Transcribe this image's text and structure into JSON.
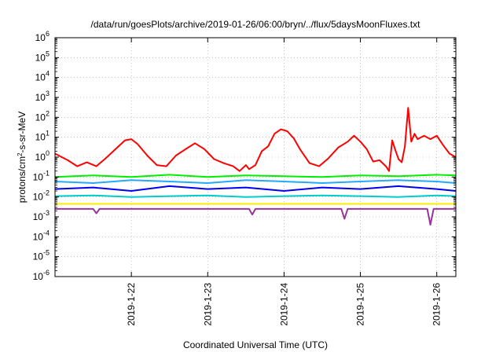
{
  "chart_data": {
    "type": "line",
    "title": "/data/run/goesPlots/archive/2019-01-26/06:00/bryn/../flux/5daysMoonFluxes.txt",
    "xlabel": "Coordinated Universal Time (UTC)",
    "ylabel": "protons/cm2-s-sr-MeV",
    "ylabel_parts": {
      "pre": "protons/cm",
      "sup": "2",
      "post": "-s-sr-MeV"
    },
    "y_scale": "log",
    "ylim": [
      1e-06,
      1000000.0
    ],
    "y_ticks": [
      {
        "base": "10",
        "exp": "-6"
      },
      {
        "base": "10",
        "exp": "-5"
      },
      {
        "base": "10",
        "exp": "-4"
      },
      {
        "base": "10",
        "exp": "-3"
      },
      {
        "base": "10",
        "exp": "-2"
      },
      {
        "base": "10",
        "exp": "-1"
      },
      {
        "base": "10",
        "exp": "0"
      },
      {
        "base": "10",
        "exp": "1"
      },
      {
        "base": "10",
        "exp": "2"
      },
      {
        "base": "10",
        "exp": "3"
      },
      {
        "base": "10",
        "exp": "4"
      },
      {
        "base": "10",
        "exp": "5"
      },
      {
        "base": "10",
        "exp": "6"
      }
    ],
    "xlim": [
      "2019-01-21T00:00",
      "2019-01-26T06:00"
    ],
    "x_ticks": [
      "2019-1-22",
      "2019-1-23",
      "2019-1-24",
      "2019-1-25",
      "2019-1-26"
    ],
    "grid": true,
    "series": [
      {
        "color": "#ff0000",
        "width": 2,
        "x": [
          "2019-01-21T00:00",
          "2019-01-21T04:00",
          "2019-01-21T07:00",
          "2019-01-21T10:00",
          "2019-01-21T13:00",
          "2019-01-21T16:00",
          "2019-01-21T19:00",
          "2019-01-21T22:00",
          "2019-01-22T00:00",
          "2019-01-22T02:00",
          "2019-01-22T05:00",
          "2019-01-22T08:00",
          "2019-01-22T11:00",
          "2019-01-22T14:00",
          "2019-01-22T17:00",
          "2019-01-22T20:00",
          "2019-01-22T23:00",
          "2019-01-23T02:00",
          "2019-01-23T05:00",
          "2019-01-23T08:00",
          "2019-01-23T10:00",
          "2019-01-23T12:00",
          "2019-01-23T13:00",
          "2019-01-23T15:00",
          "2019-01-23T17:00",
          "2019-01-23T19:00",
          "2019-01-23T21:00",
          "2019-01-23T23:00",
          "2019-01-24T01:00",
          "2019-01-24T03:00",
          "2019-01-24T05:00",
          "2019-01-24T08:00",
          "2019-01-24T11:00",
          "2019-01-24T14:00",
          "2019-01-24T17:00",
          "2019-01-24T20:00",
          "2019-01-24T22:00",
          "2019-01-25T00:00",
          "2019-01-25T02:00",
          "2019-01-25T04:00",
          "2019-01-25T06:00",
          "2019-01-25T08:00",
          "2019-01-25T09:00",
          "2019-01-25T10:00",
          "2019-01-25T11:00",
          "2019-01-25T12:00",
          "2019-01-25T13:00",
          "2019-01-25T14:00",
          "2019-01-25T15:00",
          "2019-01-25T16:00",
          "2019-01-25T17:00",
          "2019-01-25T18:00",
          "2019-01-25T20:00",
          "2019-01-25T22:00",
          "2019-01-26T00:00",
          "2019-01-26T02:00",
          "2019-01-26T04:00",
          "2019-01-26T06:00"
        ],
        "y": [
          1.5,
          0.7,
          0.35,
          0.55,
          0.35,
          0.9,
          2.5,
          7,
          8,
          4.5,
          1.2,
          0.4,
          0.35,
          1.2,
          2.5,
          5,
          2.5,
          0.8,
          0.5,
          0.35,
          0.2,
          0.4,
          0.25,
          0.4,
          2,
          3.5,
          15,
          25,
          20,
          9,
          2.5,
          0.5,
          0.35,
          0.9,
          3,
          6,
          12,
          6,
          2.5,
          0.6,
          0.7,
          0.35,
          0.2,
          7,
          2.2,
          0.8,
          0.55,
          3.5,
          300,
          6,
          15,
          8,
          12,
          8,
          12,
          4,
          1.5,
          1
        ]
      },
      {
        "color": "#00ee00",
        "width": 2,
        "x": [
          "2019-01-21T00:00",
          "2019-01-21T12:00",
          "2019-01-22T00:00",
          "2019-01-22T12:00",
          "2019-01-23T00:00",
          "2019-01-23T12:00",
          "2019-01-24T00:00",
          "2019-01-24T12:00",
          "2019-01-25T00:00",
          "2019-01-25T12:00",
          "2019-01-26T00:00",
          "2019-01-26T06:00"
        ],
        "y": [
          0.1,
          0.12,
          0.1,
          0.13,
          0.1,
          0.12,
          0.11,
          0.1,
          0.12,
          0.11,
          0.13,
          0.12
        ]
      },
      {
        "color": "#22aaff",
        "width": 2,
        "x": [
          "2019-01-21T00:00",
          "2019-01-21T12:00",
          "2019-01-22T00:00",
          "2019-01-22T12:00",
          "2019-01-23T00:00",
          "2019-01-23T12:00",
          "2019-01-24T00:00",
          "2019-01-24T12:00",
          "2019-01-25T00:00",
          "2019-01-25T12:00",
          "2019-01-26T00:00",
          "2019-01-26T06:00"
        ],
        "y": [
          0.06,
          0.05,
          0.07,
          0.06,
          0.05,
          0.07,
          0.06,
          0.05,
          0.06,
          0.07,
          0.06,
          0.05
        ]
      },
      {
        "color": "#0000ee",
        "width": 2,
        "x": [
          "2019-01-21T00:00",
          "2019-01-21T12:00",
          "2019-01-22T00:00",
          "2019-01-22T12:00",
          "2019-01-23T00:00",
          "2019-01-23T12:00",
          "2019-01-24T00:00",
          "2019-01-24T12:00",
          "2019-01-25T00:00",
          "2019-01-25T12:00",
          "2019-01-26T00:00",
          "2019-01-26T06:00"
        ],
        "y": [
          0.025,
          0.03,
          0.02,
          0.035,
          0.025,
          0.03,
          0.02,
          0.03,
          0.025,
          0.035,
          0.025,
          0.02
        ]
      },
      {
        "color": "#00cccc",
        "width": 2,
        "x": [
          "2019-01-21T00:00",
          "2019-01-21T12:00",
          "2019-01-22T00:00",
          "2019-01-22T12:00",
          "2019-01-23T00:00",
          "2019-01-23T12:00",
          "2019-01-24T00:00",
          "2019-01-24T12:00",
          "2019-01-25T00:00",
          "2019-01-25T12:00",
          "2019-01-26T00:00",
          "2019-01-26T06:00"
        ],
        "y": [
          0.011,
          0.012,
          0.01,
          0.011,
          0.012,
          0.01,
          0.011,
          0.012,
          0.011,
          0.01,
          0.012,
          0.011
        ]
      },
      {
        "color": "#ffee00",
        "width": 2,
        "x": [
          "2019-01-21T00:00",
          "2019-01-22T00:00",
          "2019-01-23T00:00",
          "2019-01-24T00:00",
          "2019-01-25T00:00",
          "2019-01-26T00:00",
          "2019-01-26T06:00"
        ],
        "y": [
          0.0045,
          0.0045,
          0.0045,
          0.0045,
          0.0045,
          0.0045,
          0.0045
        ]
      },
      {
        "color": "#993399",
        "width": 2,
        "x": [
          "2019-01-21T00:00",
          "2019-01-21T12:00",
          "2019-01-21T13:00",
          "2019-01-21T14:00",
          "2019-01-22T00:00",
          "2019-01-23T00:00",
          "2019-01-23T13:00",
          "2019-01-23T14:00",
          "2019-01-23T15:00",
          "2019-01-24T00:00",
          "2019-01-24T18:00",
          "2019-01-24T19:00",
          "2019-01-24T20:00",
          "2019-01-25T00:00",
          "2019-01-25T21:00",
          "2019-01-25T22:00",
          "2019-01-25T23:00",
          "2019-01-26T00:00",
          "2019-01-26T06:00"
        ],
        "y": [
          0.0025,
          0.0025,
          0.0015,
          0.0025,
          0.0025,
          0.0025,
          0.0025,
          0.0013,
          0.0025,
          0.0025,
          0.0025,
          0.0008,
          0.0025,
          0.0025,
          0.0025,
          0.0004,
          0.0025,
          0.0025,
          0.0025
        ]
      }
    ]
  }
}
